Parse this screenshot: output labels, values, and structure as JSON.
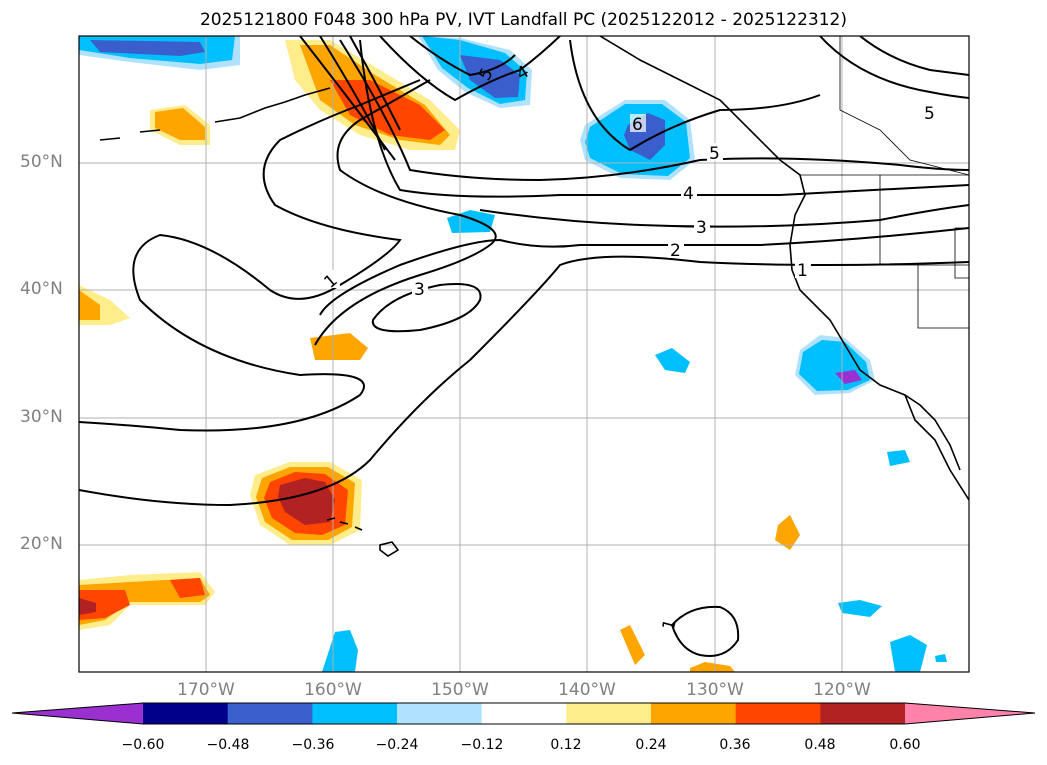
{
  "title": "2025121800 F048 300 hPa PV, IVT Landfall PC (2025122012 - 2025122312)",
  "map": {
    "lon_range": [
      -180,
      -110
    ],
    "lat_range": [
      10,
      60
    ],
    "lat_labels": [
      "50°N",
      "40°N",
      "30°N",
      "20°N"
    ],
    "lon_labels": [
      "170°W",
      "160°W",
      "150°W",
      "140°W",
      "130°W",
      "120°W"
    ],
    "gridlines": true,
    "contour_labels": [
      "1",
      "3",
      "5",
      "4",
      "6",
      "5",
      "4",
      "3",
      "2",
      "1",
      "5",
      "1"
    ]
  },
  "colorbar": {
    "tick_labels": [
      "−0.60",
      "−0.48",
      "−0.36",
      "−0.24",
      "−0.12",
      "0.12",
      "0.24",
      "0.36",
      "0.48",
      "0.60"
    ],
    "colors": [
      "#9b30d0",
      "#00008b",
      "#3a5fcd",
      "#00bfff",
      "#b0e2ff",
      "#ffffff",
      "#ffec8b",
      "#ffa500",
      "#ff4500",
      "#b22222",
      "#ff82ab"
    ],
    "extend": "both"
  }
}
